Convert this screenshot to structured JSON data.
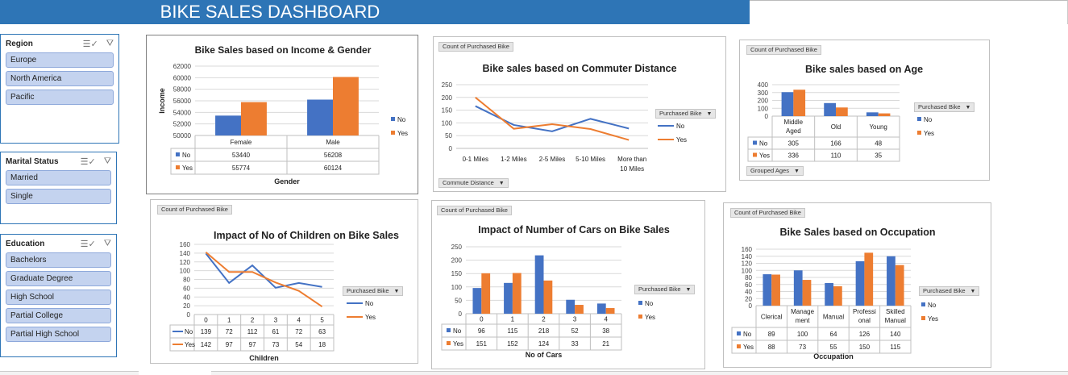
{
  "dashboard": {
    "title": "BIKE SALES DASHBOARD"
  },
  "colors": {
    "no": "#4472c4",
    "yes": "#ed7d31",
    "banner": "#2e75b6",
    "slicer_item": "#c4d3ef"
  },
  "slicers": {
    "region": {
      "title": "Region",
      "items": [
        "Europe",
        "North America",
        "Pacific"
      ]
    },
    "marital": {
      "title": "Marital Status",
      "items": [
        "Married",
        "Single"
      ]
    },
    "education": {
      "title": "Education",
      "items": [
        "Bachelors",
        "Graduate Degree",
        "High School",
        "Partial College",
        "Partial High School"
      ]
    },
    "icons": [
      "multi-select-icon",
      "clear-filter-icon"
    ]
  },
  "fields": {
    "count": "Count of Purchased Bike",
    "purchased": "Purchased Bike",
    "commute": "Commute Distance",
    "grouped_ages": "Grouped Ages"
  },
  "chart_data": [
    {
      "id": "income",
      "type": "bar",
      "title": "Bike Sales based on Income & Gender",
      "xlabel": "Gender",
      "ylabel": "Income",
      "ylim": [
        50000,
        62000
      ],
      "yticks": [
        "62000",
        "60000",
        "58000",
        "56000",
        "54000",
        "52000",
        "50000"
      ],
      "categories": [
        "Female",
        "Male"
      ],
      "series": [
        {
          "name": "No",
          "values": [
            53440,
            56208
          ],
          "labels": [
            "53440",
            "56208"
          ]
        },
        {
          "name": "Yes",
          "values": [
            55774,
            60124
          ],
          "labels": [
            "55774",
            "60124"
          ]
        }
      ],
      "legend": "right"
    },
    {
      "id": "commute",
      "type": "line",
      "title": "Bike sales based on Commuter Distance",
      "ylim": [
        0,
        250
      ],
      "yticks": [
        "250",
        "200",
        "150",
        "100",
        "50",
        "0"
      ],
      "categories": [
        "0-1 Miles",
        "1-2 Miles",
        "2-5 Miles",
        "5-10 Miles",
        "More than 10 Miles"
      ],
      "series": [
        {
          "name": "No",
          "values": [
            166,
            92,
            67,
            116,
            78
          ]
        },
        {
          "name": "Yes",
          "values": [
            200,
            77,
            95,
            76,
            33
          ]
        }
      ],
      "legend": "right"
    },
    {
      "id": "age",
      "type": "bar",
      "title": "Bike sales based on Age",
      "ylim": [
        0,
        400
      ],
      "yticks": [
        "400",
        "300",
        "200",
        "100",
        "0"
      ],
      "categories": [
        "Middle Aged",
        "Old",
        "Young"
      ],
      "series": [
        {
          "name": "No",
          "values": [
            305,
            166,
            48
          ],
          "labels": [
            "305",
            "166",
            "48"
          ]
        },
        {
          "name": "Yes",
          "values": [
            336,
            110,
            35
          ],
          "labels": [
            "336",
            "110",
            "35"
          ]
        }
      ],
      "legend": "right"
    },
    {
      "id": "children",
      "type": "line",
      "title": "Impact of No of Children on Bike Sales",
      "xlabel": "Children",
      "ylim": [
        0,
        160
      ],
      "yticks": [
        "160",
        "140",
        "120",
        "100",
        "80",
        "60",
        "40",
        "20",
        "0"
      ],
      "categories": [
        "0",
        "1",
        "2",
        "3",
        "4",
        "5"
      ],
      "series": [
        {
          "name": "No",
          "values": [
            139,
            72,
            112,
            61,
            72,
            63
          ],
          "labels": [
            "139",
            "72",
            "112",
            "61",
            "72",
            "63"
          ]
        },
        {
          "name": "Yes",
          "values": [
            142,
            97,
            97,
            73,
            54,
            18
          ],
          "labels": [
            "142",
            "97",
            "97",
            "73",
            "54",
            "18"
          ]
        }
      ],
      "legend": "right"
    },
    {
      "id": "cars",
      "type": "bar",
      "title": "Impact of Number of Cars on Bike Sales",
      "xlabel": "No of Cars",
      "ylim": [
        0,
        250
      ],
      "yticks": [
        "250",
        "200",
        "150",
        "100",
        "50",
        "0"
      ],
      "categories": [
        "0",
        "1",
        "2",
        "3",
        "4"
      ],
      "series": [
        {
          "name": "No",
          "values": [
            96,
            115,
            218,
            52,
            38
          ],
          "labels": [
            "96",
            "115",
            "218",
            "52",
            "38"
          ]
        },
        {
          "name": "Yes",
          "values": [
            151,
            152,
            124,
            33,
            21
          ],
          "labels": [
            "151",
            "152",
            "124",
            "33",
            "21"
          ]
        }
      ],
      "legend": "right"
    },
    {
      "id": "occupation",
      "type": "bar",
      "title": "Bike Sales based on Occupation",
      "xlabel": "Occupation",
      "ylim": [
        0,
        160
      ],
      "yticks": [
        "160",
        "140",
        "120",
        "100",
        "80",
        "60",
        "40",
        "20",
        "0"
      ],
      "categories": [
        "Clerical",
        "Management",
        "Manual",
        "Professional",
        "Skilled Manual"
      ],
      "category_lines": [
        [
          "Clerical"
        ],
        [
          "Manage",
          "ment"
        ],
        [
          "Manual"
        ],
        [
          "Professi",
          "onal"
        ],
        [
          "Skilled",
          "Manual"
        ]
      ],
      "series": [
        {
          "name": "No",
          "values": [
            89,
            100,
            64,
            126,
            140
          ],
          "labels": [
            "89",
            "100",
            "64",
            "126",
            "140"
          ]
        },
        {
          "name": "Yes",
          "values": [
            88,
            73,
            55,
            150,
            115
          ],
          "labels": [
            "88",
            "73",
            "55",
            "150",
            "115"
          ]
        }
      ],
      "legend": "right"
    }
  ]
}
